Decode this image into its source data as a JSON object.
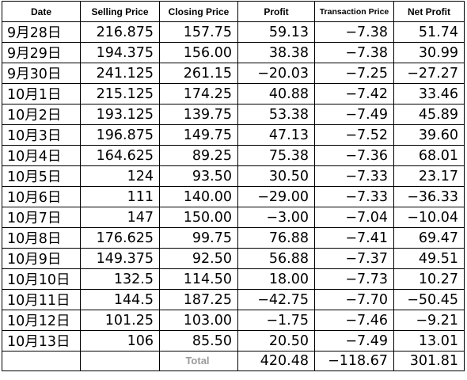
{
  "headers": [
    "Date",
    "Selling Price",
    "Closing Price",
    "Profit",
    "Transaction Price",
    "Net Profit"
  ],
  "rows": [
    [
      "9月28日",
      "216.875",
      "157.75",
      "59.13",
      "−7.38",
      "51.74"
    ],
    [
      "9月29日",
      "194.375",
      "156.00",
      "38.38",
      "−7.38",
      "30.99"
    ],
    [
      "9月30日",
      "241.125",
      "261.15",
      "−20.03",
      "−7.25",
      "−27.27"
    ],
    [
      "10月1日",
      "215.125",
      "174.25",
      "40.88",
      "−7.42",
      "33.46"
    ],
    [
      "10月2日",
      "193.125",
      "139.75",
      "53.38",
      "−7.49",
      "45.89"
    ],
    [
      "10月3日",
      "196.875",
      "149.75",
      "47.13",
      "−7.52",
      "39.60"
    ],
    [
      "10月4日",
      "164.625",
      "89.25",
      "75.38",
      "−7.36",
      "68.01"
    ],
    [
      "10月5日",
      "124",
      "93.50",
      "30.50",
      "−7.33",
      "23.17"
    ],
    [
      "10月6日",
      "111",
      "140.00",
      "−29.00",
      "−7.33",
      "−36.33"
    ],
    [
      "10月7日",
      "147",
      "150.00",
      "−3.00",
      "−7.04",
      "−10.04"
    ],
    [
      "10月8日",
      "176.625",
      "99.75",
      "76.88",
      "−7.41",
      "69.47"
    ],
    [
      "10月9日",
      "149.375",
      "92.50",
      "56.88",
      "−7.37",
      "49.51"
    ],
    [
      "10月10日",
      "132.5",
      "114.50",
      "18.00",
      "−7.73",
      "10.27"
    ],
    [
      "10月11日",
      "144.5",
      "187.25",
      "−42.75",
      "−7.70",
      "−50.45"
    ],
    [
      "10月12日",
      "101.25",
      "103.00",
      "−1.75",
      "−7.46",
      "−9.21"
    ],
    [
      "10月13日",
      "106",
      "85.50",
      "20.50",
      "−7.49",
      "13.01"
    ]
  ],
  "total": {
    "label": "Total",
    "profit": "420.48",
    "transaction_price": "−118.67",
    "net_profit": "301.81"
  }
}
